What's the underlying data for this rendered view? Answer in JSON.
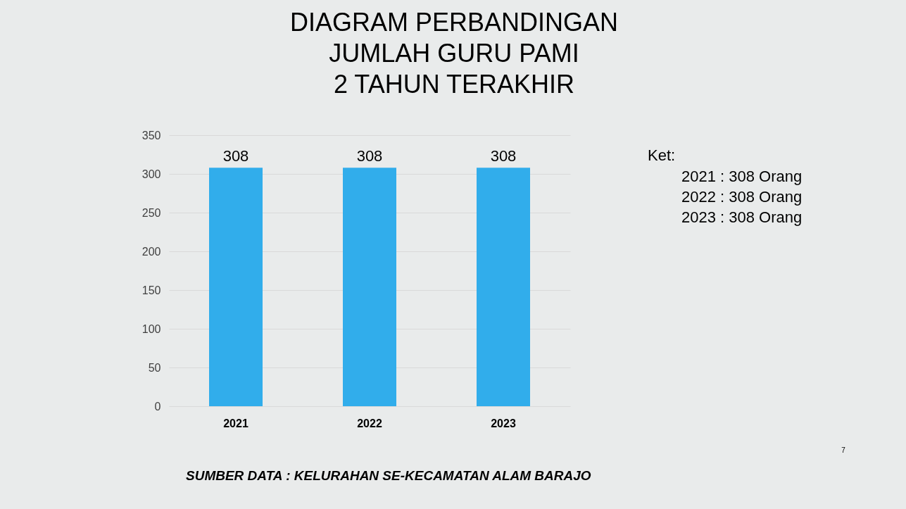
{
  "chart_data": {
    "type": "bar",
    "title": "DIAGRAM PERBANDINGAN\nJUMLAH GURU PAMI\n2 TAHUN TERAKHIR",
    "categories": [
      "2021",
      "2022",
      "2023"
    ],
    "values": [
      308,
      308,
      308
    ],
    "color": "#31adeb",
    "ylim": [
      0,
      350
    ],
    "yticks": [
      0,
      50,
      100,
      150,
      200,
      250,
      300,
      350
    ],
    "grid": "y",
    "data_labels": true,
    "annotations": [
      "Ket:",
      "2021 : 308 Orang",
      "2022 : 308 Orang",
      "2023 : 308 Orang",
      "SUMBER DATA : KELURAHAN  SE-KECAMATAN ALAM BARAJO",
      "7"
    ]
  }
}
